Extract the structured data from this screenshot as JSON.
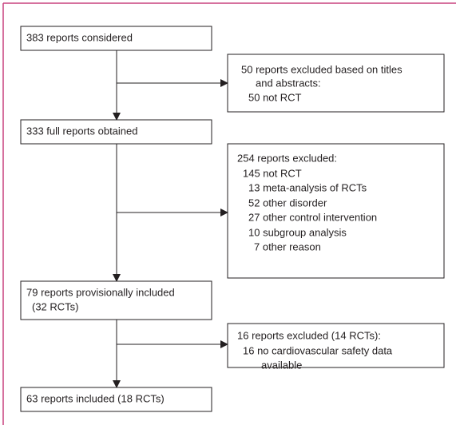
{
  "nodes": [
    {
      "lines": [
        "383 reports considered"
      ]
    },
    {
      "lines": [
        "50 reports excluded based on titles",
        "and abstracts:",
        "50 not RCT"
      ]
    },
    {
      "lines": [
        "333 full reports obtained"
      ]
    },
    {
      "lines": [
        "254 reports excluded:",
        "145 not RCT",
        "13 meta-analysis of RCTs",
        "52 other disorder",
        "27 other control intervention",
        "10 subgroup analysis",
        "7 other reason"
      ]
    },
    {
      "lines": [
        "79 reports provisionally included",
        "(32 RCTs)"
      ]
    },
    {
      "lines": [
        "16 reports excluded (14 RCTs):",
        "16 no cardiovascular safety data",
        "available"
      ]
    },
    {
      "lines": [
        "63 reports included (18 RCTs)"
      ]
    }
  ]
}
